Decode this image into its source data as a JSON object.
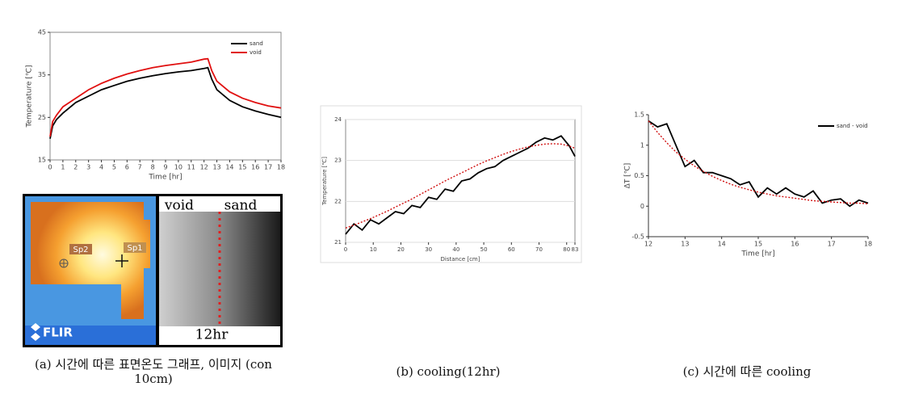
{
  "chart_data": [
    {
      "type": "line",
      "x": [
        0,
        0.2,
        0.5,
        1,
        2,
        3,
        4,
        5,
        6,
        7,
        8,
        9,
        10,
        11,
        12,
        12.3,
        12.6,
        13,
        14,
        15,
        16,
        17,
        18
      ],
      "xlim": [
        0,
        18
      ],
      "xticks": [
        0,
        1,
        2,
        3,
        4,
        5,
        6,
        7,
        8,
        9,
        10,
        11,
        12,
        13,
        14,
        15,
        16,
        17,
        18
      ],
      "ylim": [
        15,
        45
      ],
      "yticks": [
        15,
        25,
        35,
        45
      ],
      "xlabel": "Time [hr]",
      "ylabel": "Temperature [℃]",
      "frame": true,
      "legend": "upper right",
      "series": [
        {
          "name": "sand",
          "color": "#000000",
          "values": [
            20,
            23,
            24.5,
            26,
            28.5,
            30,
            31.5,
            32.5,
            33.5,
            34.2,
            34.8,
            35.3,
            35.7,
            36,
            36.5,
            36.7,
            34,
            31.5,
            29,
            27.5,
            26.5,
            25.7,
            25
          ]
        },
        {
          "name": "void",
          "color": "#e01010",
          "values": [
            20.5,
            24,
            25.5,
            27.5,
            29.5,
            31.5,
            33,
            34.2,
            35.2,
            36,
            36.7,
            37.2,
            37.6,
            38,
            38.7,
            38.8,
            36,
            33.5,
            31,
            29.5,
            28.5,
            27.7,
            27.2
          ]
        }
      ]
    },
    {
      "type": "line",
      "x": [
        0,
        3,
        6,
        9,
        12,
        15,
        18,
        21,
        24,
        27,
        30,
        33,
        36,
        39,
        42,
        45,
        48,
        51,
        54,
        57,
        60,
        63,
        66,
        69,
        72,
        75,
        78,
        81,
        83
      ],
      "xlim": [
        0,
        83
      ],
      "xticks": [
        0,
        10,
        20,
        30,
        40,
        50,
        60,
        70,
        80,
        83
      ],
      "ylim": [
        21,
        24
      ],
      "yticks": [
        21,
        22,
        23,
        24
      ],
      "xlabel": "Distance [cm]",
      "ylabel": "Temperature [℃]",
      "grid": true,
      "frame": true,
      "series": [
        {
          "color": "#000000",
          "values": [
            21.2,
            21.45,
            21.3,
            21.55,
            21.45,
            21.6,
            21.75,
            21.7,
            21.9,
            21.85,
            22.1,
            22.05,
            22.3,
            22.25,
            22.5,
            22.55,
            22.7,
            22.8,
            22.85,
            23.0,
            23.1,
            23.2,
            23.3,
            23.45,
            23.55,
            23.5,
            23.6,
            23.35,
            23.1
          ]
        },
        {
          "color": "#d01010",
          "line_style": "dotted",
          "values": [
            21.35,
            21.42,
            21.5,
            21.58,
            21.67,
            21.76,
            21.86,
            21.96,
            22.06,
            22.17,
            22.28,
            22.39,
            22.5,
            22.6,
            22.7,
            22.8,
            22.9,
            22.99,
            23.07,
            23.15,
            23.22,
            23.28,
            23.33,
            23.37,
            23.4,
            23.41,
            23.4,
            23.35,
            23.3
          ]
        }
      ]
    },
    {
      "type": "line",
      "x": [
        12,
        12.25,
        12.5,
        12.75,
        13,
        13.25,
        13.5,
        13.75,
        14,
        14.25,
        14.5,
        14.75,
        15,
        15.25,
        15.5,
        15.75,
        16,
        16.25,
        16.5,
        16.75,
        17,
        17.25,
        17.5,
        17.75,
        18
      ],
      "xlim": [
        12,
        18
      ],
      "xticks": [
        12,
        13,
        14,
        15,
        16,
        17,
        18
      ],
      "ylim": [
        -0.5,
        1.5
      ],
      "yticks": [
        -0.5,
        0,
        0.5,
        1,
        1.5
      ],
      "xlabel": "Time  [hr]",
      "ylabel": "ΔT [℃]",
      "frame": false,
      "legend": "upper right",
      "series": [
        {
          "name": "sand - void",
          "color": "#000000",
          "values": [
            1.4,
            1.3,
            1.35,
            1.0,
            0.65,
            0.75,
            0.55,
            0.55,
            0.5,
            0.45,
            0.35,
            0.4,
            0.15,
            0.3,
            0.2,
            0.3,
            0.2,
            0.15,
            0.25,
            0.05,
            0.1,
            0.12,
            0.0,
            0.1,
            0.05
          ]
        },
        {
          "color": "#d01010",
          "line_style": "dotted",
          "values": [
            1.4,
            1.21,
            1.04,
            0.89,
            0.77,
            0.66,
            0.57,
            0.49,
            0.42,
            0.36,
            0.31,
            0.27,
            0.23,
            0.2,
            0.17,
            0.15,
            0.13,
            0.11,
            0.09,
            0.08,
            0.07,
            0.06,
            0.05,
            0.05,
            0.04
          ]
        }
      ]
    }
  ],
  "image": {
    "labels": {
      "void": "void",
      "sand": "sand",
      "time": "12hr",
      "spot1": "Sp1",
      "spot2": "Sp2",
      "brand": "FLIR"
    }
  },
  "captions": [
    "(a) 시간에 따른 표면온도 그래프, 이미지 (con 10cm)",
    "(b) cooling(12hr)",
    "(c) 시간에 따른 cooling"
  ]
}
